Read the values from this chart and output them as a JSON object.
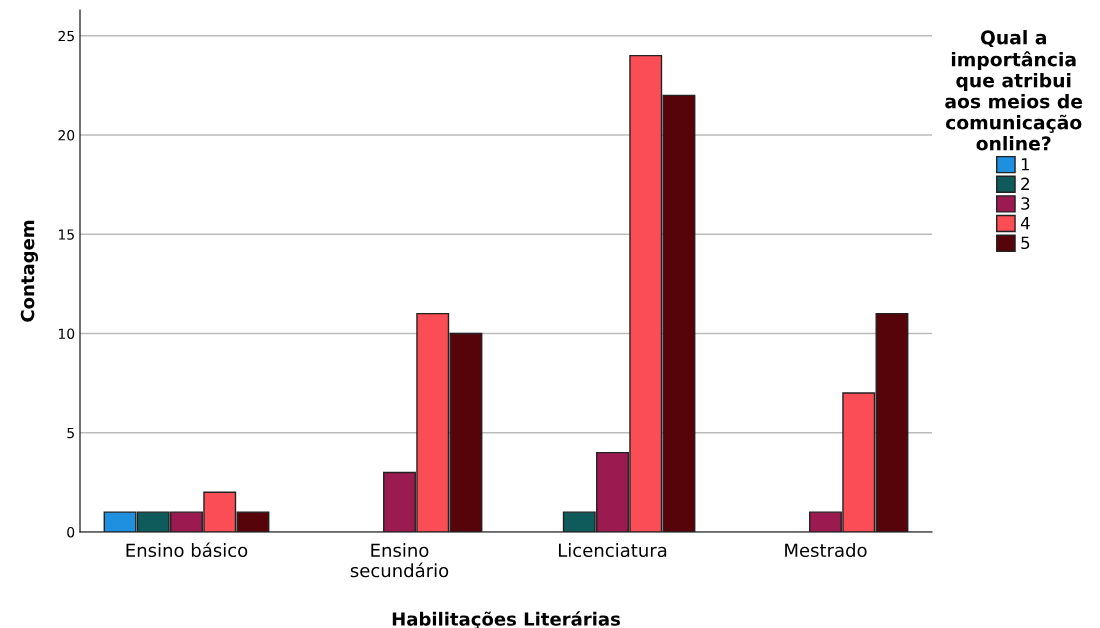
{
  "chart_data": {
    "type": "bar",
    "categories": [
      "Ensino básico",
      "Ensino\nsecundário",
      "Licenciatura",
      "Mestrado"
    ],
    "xlabel": "Habilitações Literárias",
    "ylabel": "Contagem",
    "legend_title": "Qual a\nimportância\nque atribui\naos meios de\ncomunicação\nonline?",
    "series": [
      {
        "name": "1",
        "color": "#1f8fe0",
        "values": [
          1,
          null,
          null,
          null
        ]
      },
      {
        "name": "2",
        "color": "#0f5b5b",
        "values": [
          1,
          null,
          1,
          null
        ]
      },
      {
        "name": "3",
        "color": "#9b1a50",
        "values": [
          1,
          3,
          4,
          1
        ]
      },
      {
        "name": "4",
        "color": "#fb4d55",
        "values": [
          2,
          11,
          24,
          7
        ]
      },
      {
        "name": "5",
        "color": "#560409",
        "values": [
          1,
          10,
          22,
          11
        ]
      }
    ],
    "ylim": [
      0,
      26.3
    ],
    "yticks": [
      0,
      5,
      10,
      15,
      20,
      25
    ],
    "grid": "y",
    "legend": "top right"
  }
}
